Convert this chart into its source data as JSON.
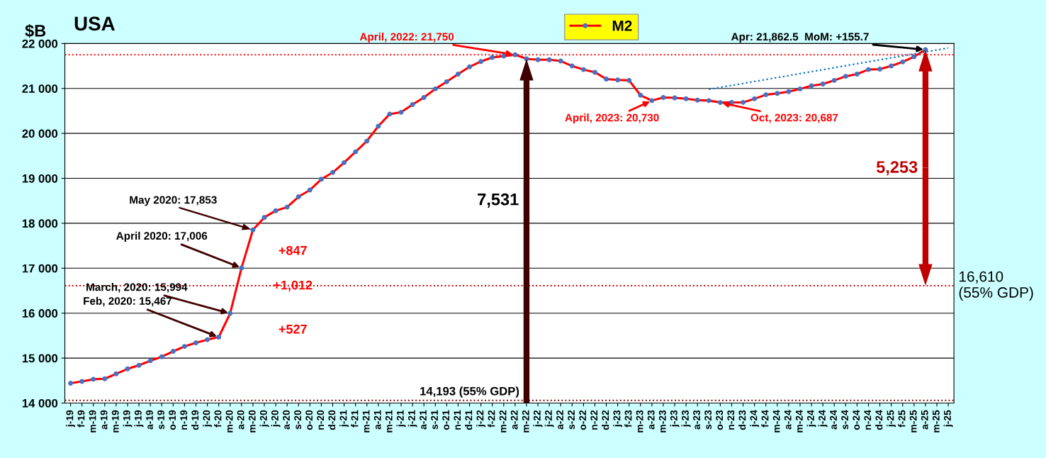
{
  "chart_data": {
    "type": "line",
    "title": "USA",
    "ylabel": "$B",
    "categories": [
      "j-19",
      "f-19",
      "m-19",
      "a-19",
      "m-19",
      "j-19",
      "j-19",
      "a-19",
      "s-19",
      "o-19",
      "n-19",
      "d-19",
      "j-20",
      "f-20",
      "m-20",
      "a-20",
      "m-20",
      "j-20",
      "j-20",
      "a-20",
      "s-20",
      "o-20",
      "n-20",
      "d-20",
      "j-21",
      "f-21",
      "m-21",
      "a-21",
      "m-21",
      "j-21",
      "j-21",
      "a-21",
      "s-21",
      "o-21",
      "n-21",
      "d-21",
      "j-22",
      "f-22",
      "m-22",
      "a-22",
      "m-22",
      "j-22",
      "j-22",
      "a-22",
      "s-22",
      "o-22",
      "n-22",
      "d-22",
      "j-23",
      "f-23",
      "m-23",
      "a-23",
      "m-23",
      "j-23",
      "j-23",
      "a-23",
      "s-23",
      "o-23",
      "n-23",
      "d-23",
      "j-24",
      "f-24",
      "m-24",
      "a-24",
      "m-24",
      "j-24",
      "j-24",
      "a-24",
      "s-24",
      "o-24",
      "n-24",
      "d-24",
      "j-25",
      "f-25",
      "m-25",
      "a-25",
      "m-25",
      "j-25"
    ],
    "series": [
      {
        "name": "M2",
        "color": "#ff0000",
        "marker": "circle",
        "line_style": "solid",
        "values": [
          14440,
          14480,
          14530,
          14540,
          14650,
          14760,
          14840,
          14940,
          15030,
          15150,
          15260,
          15340,
          15410,
          15467,
          15994,
          17006,
          17853,
          18130,
          18280,
          18360,
          18590,
          18740,
          18980,
          19130,
          19350,
          19590,
          19830,
          20160,
          20430,
          20470,
          20640,
          20800,
          20990,
          21150,
          21320,
          21480,
          21600,
          21690,
          21720,
          21750,
          21660,
          21640,
          21640,
          21610,
          21500,
          21420,
          21360,
          21210,
          21190,
          21180,
          20850,
          20730,
          20800,
          20790,
          20770,
          20740,
          20730,
          20687,
          20690,
          20690,
          20770,
          20860,
          20890,
          20930,
          20990,
          21060,
          21100,
          21180,
          21270,
          21320,
          21420,
          21430,
          21500,
          21590,
          21707,
          21862.5,
          null,
          null
        ]
      },
      {
        "type": "line",
        "color": "#0070c0",
        "marker": "none",
        "line_style": "dotted",
        "values": [
          null,
          null,
          null,
          null,
          null,
          null,
          null,
          null,
          null,
          null,
          null,
          null,
          null,
          null,
          null,
          null,
          null,
          null,
          null,
          null,
          null,
          null,
          null,
          null,
          null,
          null,
          null,
          null,
          null,
          null,
          null,
          null,
          null,
          null,
          null,
          null,
          null,
          null,
          null,
          null,
          null,
          null,
          null,
          null,
          null,
          null,
          null,
          null,
          null,
          null,
          null,
          null,
          null,
          null,
          null,
          null,
          20980,
          null,
          null,
          null,
          null,
          null,
          null,
          null,
          null,
          null,
          null,
          null,
          null,
          null,
          null,
          null,
          null,
          null,
          null,
          null,
          null,
          21900
        ]
      }
    ],
    "ylim": [
      14000,
      22000
    ],
    "yticks": [
      {
        "value": 14000,
        "label": "14 000"
      },
      {
        "value": 15000,
        "label": "15 000"
      },
      {
        "value": 16000,
        "label": "16 000"
      },
      {
        "value": 17000,
        "label": "17 000"
      },
      {
        "value": 18000,
        "label": "18 000"
      },
      {
        "value": 19000,
        "label": "19 000"
      },
      {
        "value": 20000,
        "label": "20 000"
      },
      {
        "value": 21000,
        "label": "21 000"
      },
      {
        "value": 22000,
        "label": "22 000"
      }
    ],
    "grid": "y",
    "legend": "top",
    "ref_lines": [
      {
        "axis": "y",
        "value": 21750,
        "color": "#ff0000",
        "line_style": "dotted"
      },
      {
        "axis": "y",
        "value": 16610,
        "label": "16,610\n(55% GDP)",
        "color": "#c00000",
        "line_style": "dotted"
      },
      {
        "axis": "y",
        "value": 14060,
        "label": "14,193 (55% GDP)",
        "color": "#7f0000",
        "line_style": "dotted"
      }
    ],
    "annotations": [
      {
        "text": "April, 2022: 21,750",
        "x": "a-22",
        "y": 21750
      },
      {
        "text": "Apr: 21,862.5  MoM: +155.7",
        "x": "a-25",
        "y": 21862.5
      },
      {
        "text": "April, 2023: 20,730",
        "x": "a-23",
        "y": 20730
      },
      {
        "text": "Oct, 2023: 20,687",
        "x": "o-23",
        "y": 20687
      },
      "May 2020: 17,853",
      {
        "text": "April 2020: 17,006",
        "x": "a-20",
        "y": 17006
      },
      {
        "text": "March, 2020: 15,994",
        "x": "m-20",
        "y": 15994
      },
      {
        "text": "Feb, 2020: 15,467",
        "x": "f-20",
        "y": 15467
      },
      "+847",
      "+1,012",
      "+527",
      "7,531",
      "5,253"
    ]
  }
}
